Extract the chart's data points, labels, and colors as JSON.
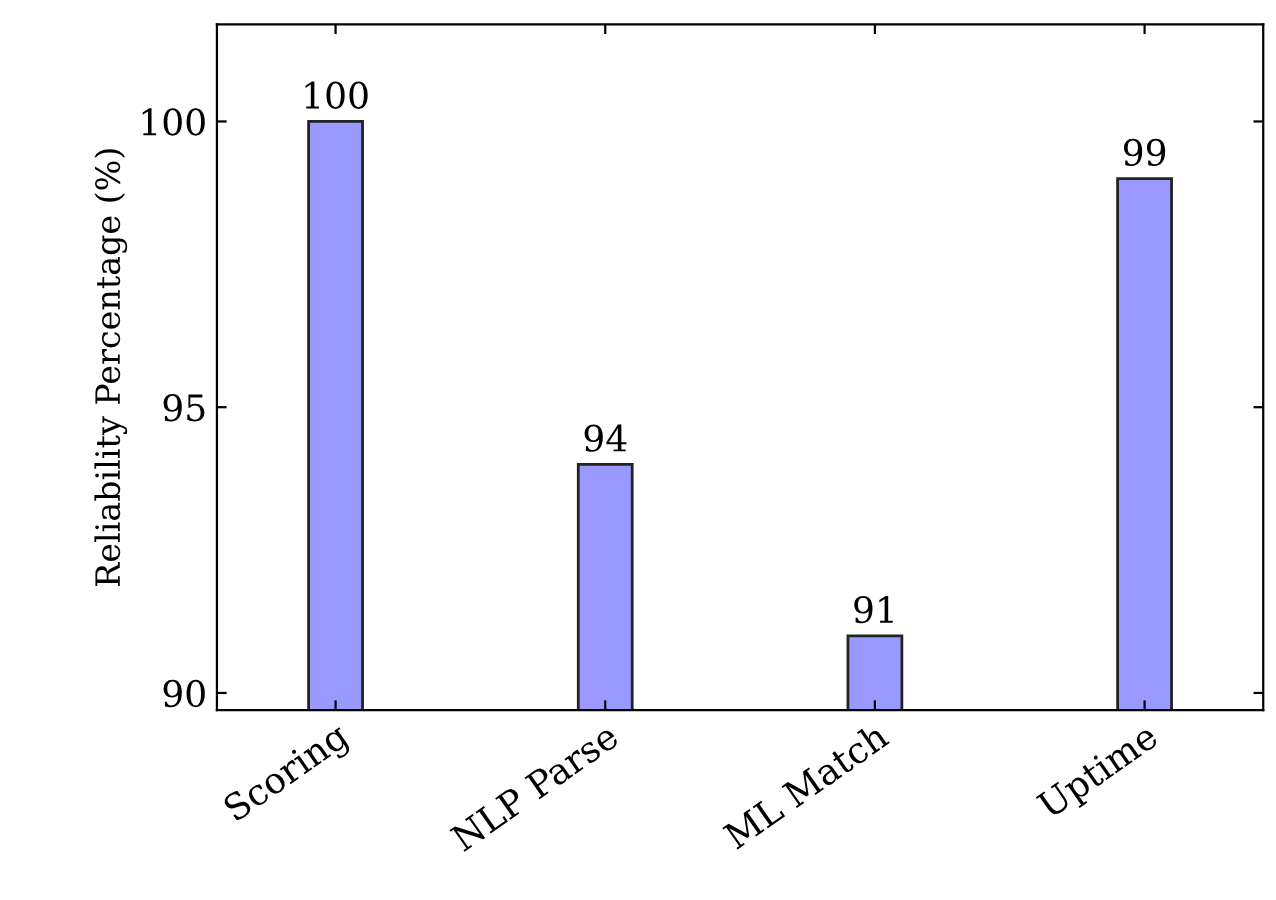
{
  "chart_data": {
    "type": "bar",
    "ylabel": "Reliability Percentage (%)",
    "categories": [
      "Scoring",
      "NLP Parse",
      "ML Match",
      "Uptime"
    ],
    "values": [
      100,
      94,
      91,
      99
    ],
    "color": "#9999ff",
    "ylim": [
      89.7,
      101.7
    ],
    "yticks": [
      90,
      95,
      100
    ],
    "data_labels": true,
    "grid": false
  }
}
